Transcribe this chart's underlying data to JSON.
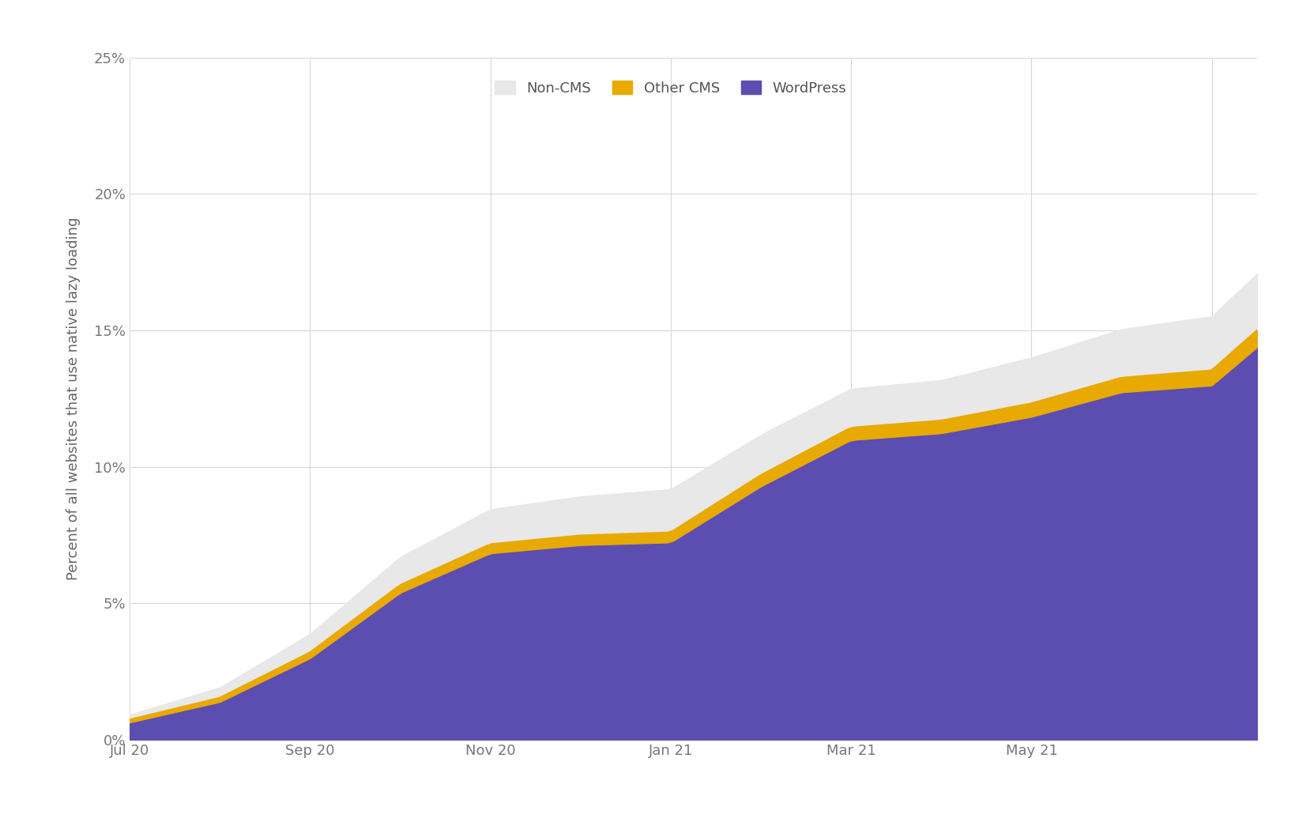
{
  "title": "",
  "ylabel": "Percent of all websites that use native lazy loading",
  "background_color": "#ffffff",
  "grid_color": "#d8d8d8",
  "wordpress_color": "#5c4db1",
  "other_cms_color": "#e8a900",
  "non_cms_color": "#e8e8e8",
  "ylim": [
    0,
    25
  ],
  "yticks": [
    0,
    5,
    10,
    15,
    20,
    25
  ],
  "ylabel_fontsize": 13,
  "tick_fontsize": 13,
  "legend_fontsize": 13,
  "x_tick_positions": [
    0,
    2,
    4,
    6,
    8,
    10,
    12
  ],
  "x_tick_labels": [
    "Jul 20",
    "Sep 20",
    "Nov 20",
    "Jan 21",
    "Mar 21",
    "May 21",
    ""
  ],
  "xlim_max": 12.5,
  "wp_knots_x": [
    0,
    1,
    2,
    3,
    4,
    5,
    6,
    7,
    8,
    9,
    10,
    11,
    12,
    12.5
  ],
  "wp_knots_y": [
    0.65,
    1.4,
    3.0,
    5.4,
    6.85,
    7.15,
    7.25,
    9.3,
    11.0,
    11.25,
    11.85,
    12.75,
    13.0,
    14.4
  ],
  "other_knots_x": [
    0,
    1,
    2,
    3,
    4,
    5,
    6,
    7,
    8,
    9,
    10,
    11,
    12,
    12.5
  ],
  "other_knots_y": [
    0.07,
    0.12,
    0.18,
    0.25,
    0.3,
    0.32,
    0.33,
    0.38,
    0.42,
    0.43,
    0.46,
    0.5,
    0.52,
    0.58
  ],
  "noncms_knots_x": [
    0,
    1,
    2,
    3,
    4,
    5,
    6,
    7,
    8,
    9,
    10,
    11,
    12,
    12.5
  ],
  "noncms_knots_y": [
    0.2,
    0.4,
    0.7,
    1.05,
    1.3,
    1.45,
    1.6,
    1.5,
    1.45,
    1.5,
    1.7,
    1.8,
    2.0,
    2.1
  ]
}
